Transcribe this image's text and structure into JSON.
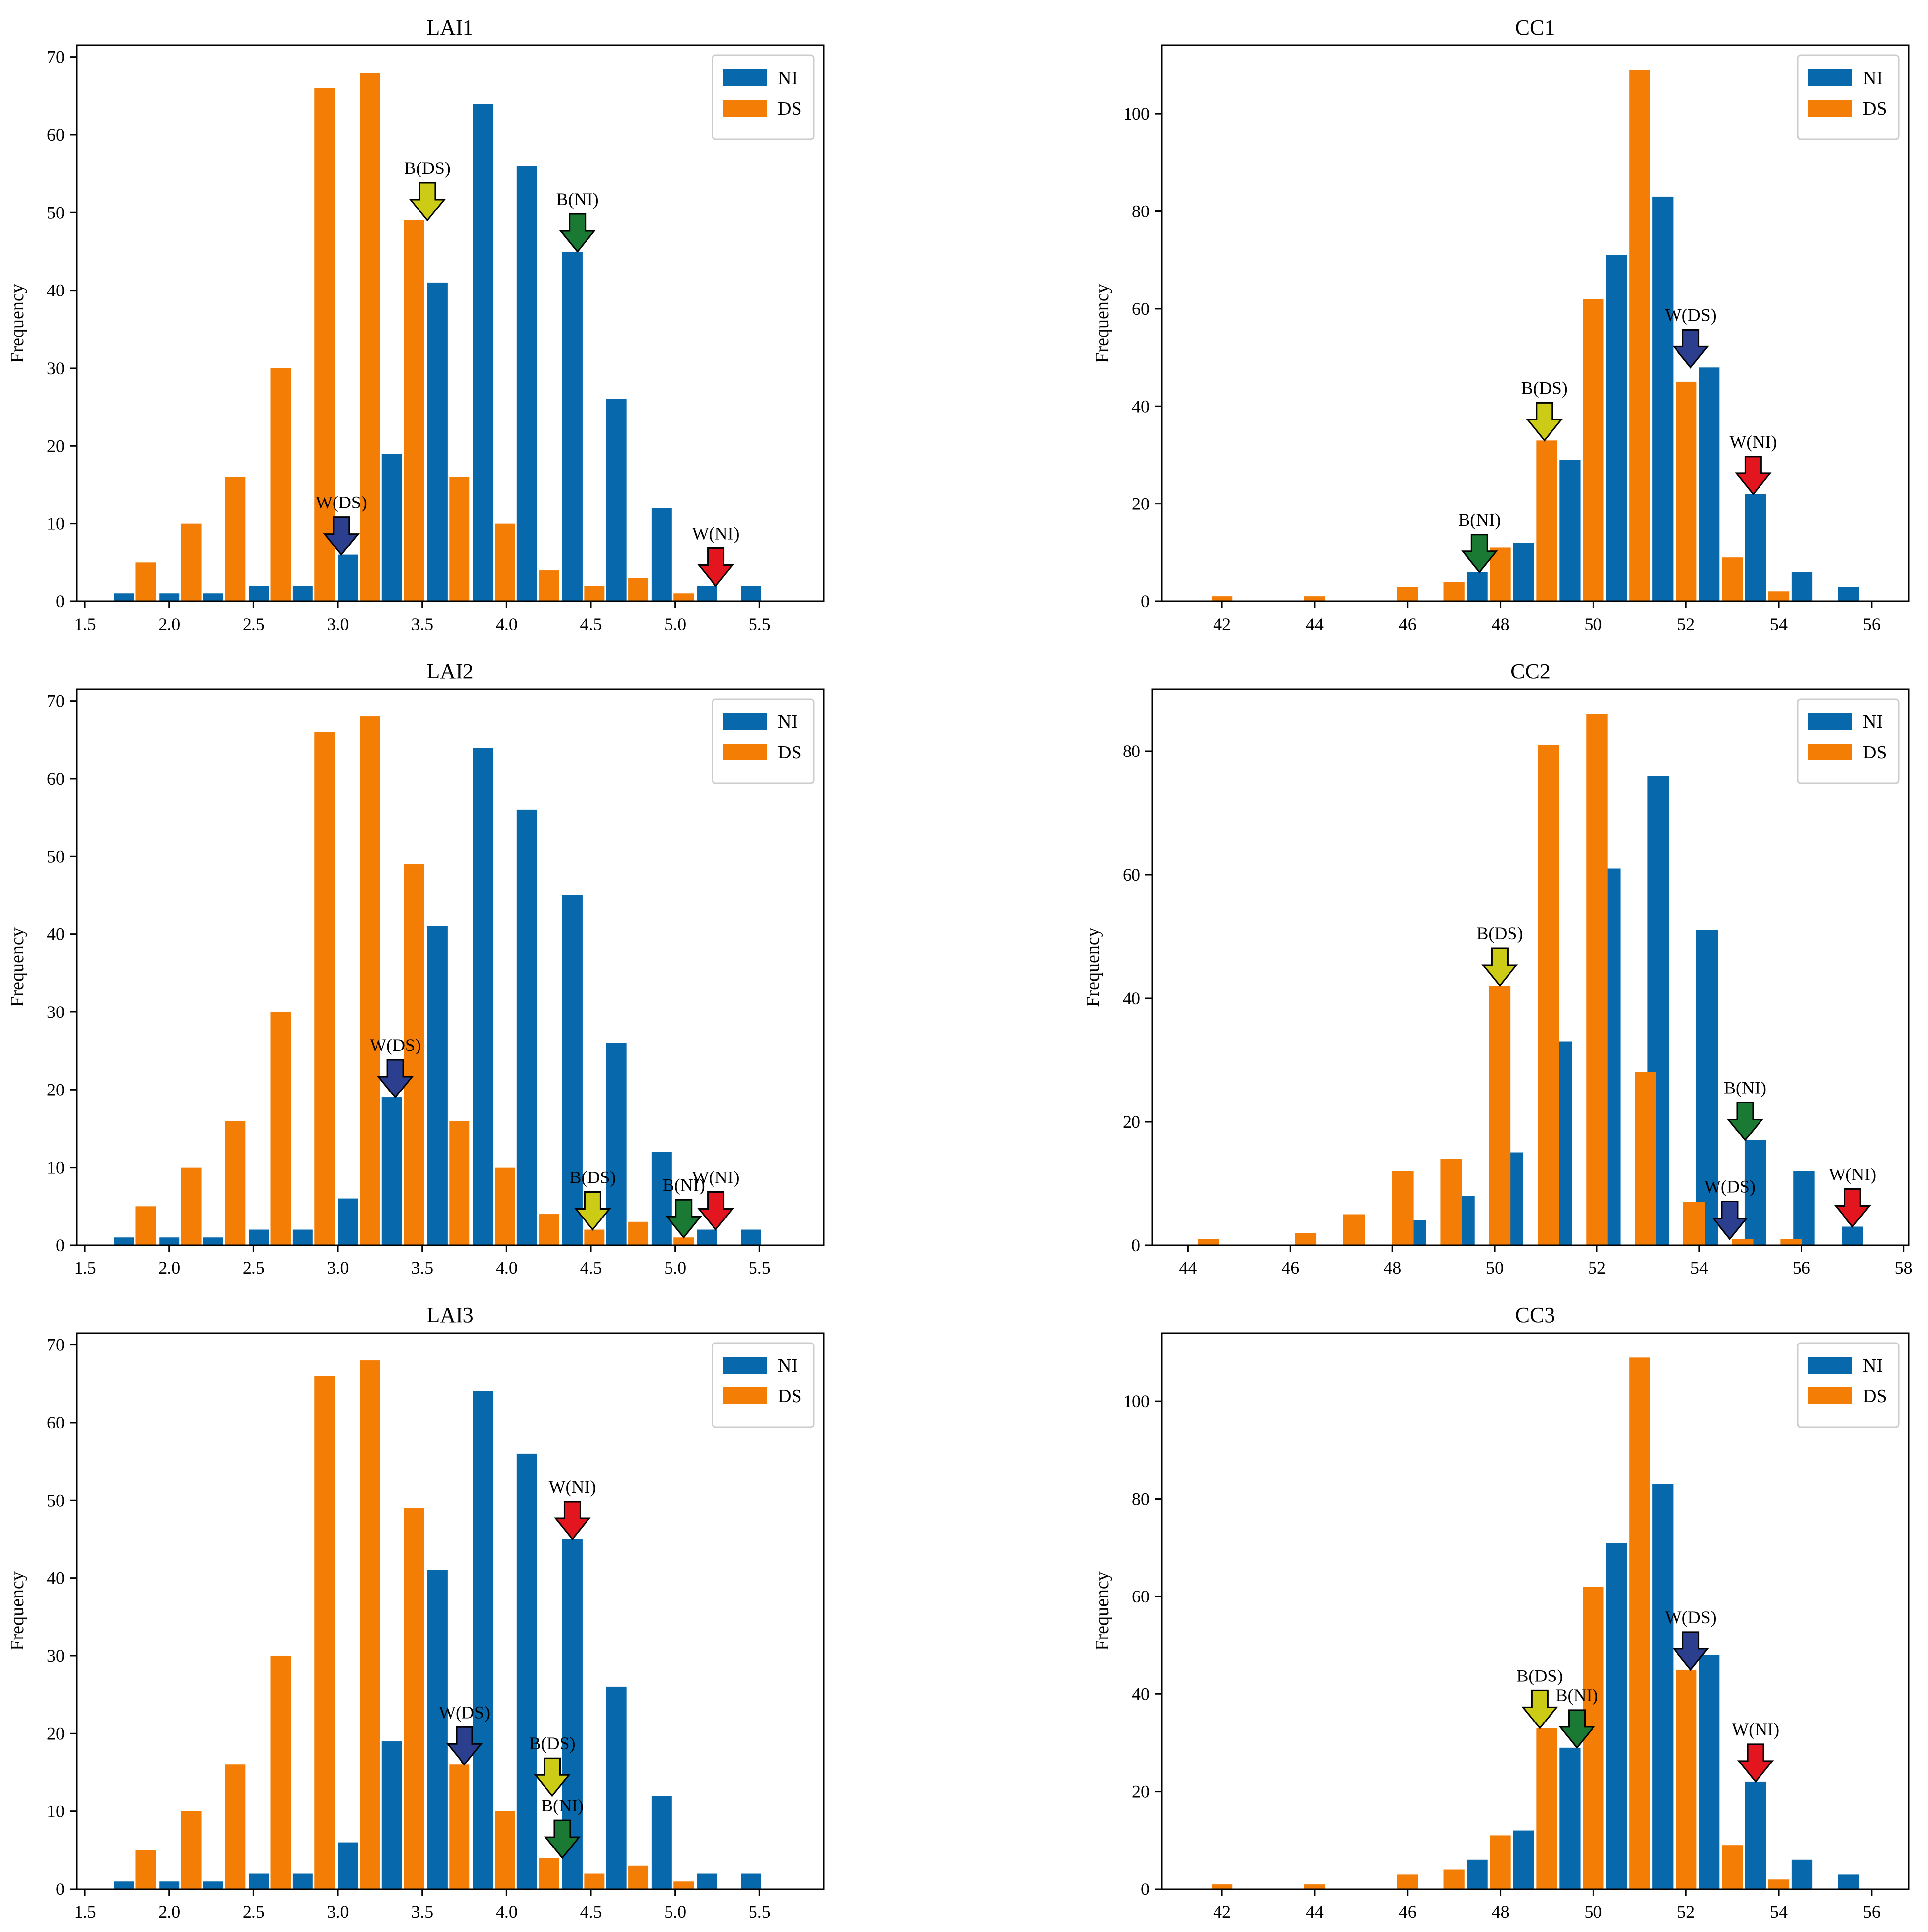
{
  "colors": {
    "NI": "#0868ac",
    "DS": "#f47d06",
    "yellow": "#cccc16",
    "green": "#1a7a33",
    "blue": "#2b3f8e",
    "red": "#e3151e"
  },
  "chart_data": [
    {
      "id": "LAI1",
      "type": "bar",
      "title": "LAI1",
      "ylabel": "Frequency",
      "xlabel": "",
      "xlim": [
        1.45,
        5.88
      ],
      "ylim": [
        0,
        71.5
      ],
      "xticks": [
        "1.5",
        "2.0",
        "2.5",
        "3.0",
        "3.5",
        "4.0",
        "4.5",
        "5.0",
        "5.5"
      ],
      "yticks": [
        "0",
        "10",
        "20",
        "30",
        "40",
        "50",
        "60",
        "70"
      ],
      "bar_width": 0.12,
      "series": [
        {
          "name": "NI",
          "x": [
            1.73,
            2.0,
            2.26,
            2.53,
            2.79,
            3.06,
            3.32,
            3.59,
            3.86,
            4.12,
            4.39,
            4.65,
            4.92,
            5.19,
            5.45
          ],
          "values": [
            1,
            1,
            1,
            2,
            2,
            6,
            19,
            41,
            64,
            56,
            45,
            26,
            12,
            2,
            2
          ]
        },
        {
          "name": "DS",
          "x": [
            1.86,
            2.13,
            2.39,
            2.66,
            2.92,
            3.19,
            3.45,
            3.72,
            3.99,
            4.25,
            4.52,
            4.78,
            5.05
          ],
          "values": [
            5,
            10,
            16,
            30,
            66,
            68,
            49,
            16,
            10,
            4,
            2,
            3,
            1
          ]
        }
      ],
      "legend": {
        "position": "top-right",
        "entries": [
          "NI",
          "DS"
        ]
      },
      "annotations": [
        {
          "label": "B(DS)",
          "x": 3.53,
          "y": 49,
          "color": "yellow"
        },
        {
          "label": "B(NI)",
          "x": 4.42,
          "y": 45,
          "color": "green"
        },
        {
          "label": "W(DS)",
          "x": 3.02,
          "y": 6,
          "color": "blue"
        },
        {
          "label": "W(NI)",
          "x": 5.24,
          "y": 2,
          "color": "red"
        }
      ]
    },
    {
      "id": "CC1",
      "type": "bar",
      "title": "CC1",
      "ylabel": "Frequency",
      "xlabel": "",
      "xlim": [
        40.7,
        56.8
      ],
      "ylim": [
        0,
        114
      ],
      "xticks": [
        "42",
        "44",
        "46",
        "48",
        "50",
        "52",
        "54",
        "56"
      ],
      "yticks": [
        "0",
        "20",
        "40",
        "60",
        "80",
        "100"
      ],
      "bar_width": 0.45,
      "series": [
        {
          "name": "NI",
          "x": [
            47.5,
            48.5,
            49.5,
            50.5,
            51.5,
            52.5,
            53.5,
            54.5,
            55.5
          ],
          "values": [
            6,
            12,
            29,
            71,
            83,
            48,
            22,
            6,
            3
          ]
        },
        {
          "name": "DS",
          "x": [
            42.0,
            44.0,
            46.0,
            47.0,
            48.0,
            49.0,
            50.0,
            51.0,
            52.0,
            53.0,
            54.0
          ],
          "values": [
            1,
            1,
            3,
            4,
            11,
            33,
            62,
            109,
            45,
            9,
            2
          ]
        }
      ],
      "legend": {
        "position": "top-right",
        "entries": [
          "NI",
          "DS"
        ]
      },
      "annotations": [
        {
          "label": "W(DS)",
          "x": 52.1,
          "y": 48,
          "color": "blue"
        },
        {
          "label": "B(DS)",
          "x": 48.95,
          "y": 33,
          "color": "yellow"
        },
        {
          "label": "W(NI)",
          "x": 53.45,
          "y": 22,
          "color": "red"
        },
        {
          "label": "B(NI)",
          "x": 47.55,
          "y": 6,
          "color": "green"
        }
      ]
    },
    {
      "id": "LAI2",
      "type": "bar",
      "title": "LAI2",
      "ylabel": "Frequency",
      "xlabel": "",
      "xlim": [
        1.45,
        5.88
      ],
      "ylim": [
        0,
        71.5
      ],
      "xticks": [
        "1.5",
        "2.0",
        "2.5",
        "3.0",
        "3.5",
        "4.0",
        "4.5",
        "5.0",
        "5.5"
      ],
      "yticks": [
        "0",
        "10",
        "20",
        "30",
        "40",
        "50",
        "60",
        "70"
      ],
      "bar_width": 0.12,
      "series": [
        {
          "name": "NI",
          "x": [
            1.73,
            2.0,
            2.26,
            2.53,
            2.79,
            3.06,
            3.32,
            3.59,
            3.86,
            4.12,
            4.39,
            4.65,
            4.92,
            5.19,
            5.45
          ],
          "values": [
            1,
            1,
            1,
            2,
            2,
            6,
            19,
            41,
            64,
            56,
            45,
            26,
            12,
            2,
            2
          ]
        },
        {
          "name": "DS",
          "x": [
            1.86,
            2.13,
            2.39,
            2.66,
            2.92,
            3.19,
            3.45,
            3.72,
            3.99,
            4.25,
            4.52,
            4.78,
            5.05
          ],
          "values": [
            5,
            10,
            16,
            30,
            66,
            68,
            49,
            16,
            10,
            4,
            2,
            3,
            1
          ]
        }
      ],
      "legend": {
        "position": "top-right",
        "entries": [
          "NI",
          "DS"
        ]
      },
      "annotations": [
        {
          "label": "W(DS)",
          "x": 3.34,
          "y": 19,
          "color": "blue"
        },
        {
          "label": "B(DS)",
          "x": 4.51,
          "y": 2,
          "color": "yellow"
        },
        {
          "label": "B(NI)",
          "x": 5.05,
          "y": 1,
          "color": "green"
        },
        {
          "label": "W(NI)",
          "x": 5.24,
          "y": 2,
          "color": "red"
        }
      ]
    },
    {
      "id": "CC2",
      "type": "bar",
      "title": "CC2",
      "ylabel": "Frequency",
      "xlabel": "",
      "xlim": [
        43.3,
        58.1
      ],
      "ylim": [
        0,
        90
      ],
      "xticks": [
        "44",
        "46",
        "48",
        "50",
        "52",
        "54",
        "56",
        "58"
      ],
      "yticks": [
        "0",
        "20",
        "40",
        "60",
        "80"
      ],
      "bar_width": 0.42,
      "series": [
        {
          "name": "NI",
          "x": [
            48.45,
            49.4,
            50.35,
            51.3,
            52.25,
            53.2,
            54.15,
            55.1,
            56.05,
            57.0
          ],
          "values": [
            4,
            8,
            15,
            33,
            61,
            76,
            51,
            17,
            12,
            3
          ]
        },
        {
          "name": "DS",
          "x": [
            44.4,
            46.3,
            47.25,
            48.2,
            49.15,
            50.1,
            51.05,
            52.0,
            52.95,
            53.9,
            54.85,
            55.8
          ],
          "values": [
            1,
            2,
            5,
            12,
            14,
            42,
            81,
            86,
            28,
            7,
            1,
            1
          ]
        }
      ],
      "legend": {
        "position": "top-right",
        "entries": [
          "NI",
          "DS"
        ]
      },
      "annotations": [
        {
          "label": "B(DS)",
          "x": 50.1,
          "y": 42,
          "color": "yellow"
        },
        {
          "label": "B(NI)",
          "x": 54.9,
          "y": 17,
          "color": "green"
        },
        {
          "label": "W(DS)",
          "x": 54.6,
          "y": 1,
          "color": "blue"
        },
        {
          "label": "W(NI)",
          "x": 57.0,
          "y": 3,
          "color": "red"
        }
      ]
    },
    {
      "id": "LAI3",
      "type": "bar",
      "title": "LAI3",
      "ylabel": "Frequency",
      "xlabel": "",
      "xlim": [
        1.45,
        5.88
      ],
      "ylim": [
        0,
        71.5
      ],
      "xticks": [
        "1.5",
        "2.0",
        "2.5",
        "3.0",
        "3.5",
        "4.0",
        "4.5",
        "5.0",
        "5.5"
      ],
      "yticks": [
        "0",
        "10",
        "20",
        "30",
        "40",
        "50",
        "60",
        "70"
      ],
      "bar_width": 0.12,
      "series": [
        {
          "name": "NI",
          "x": [
            1.73,
            2.0,
            2.26,
            2.53,
            2.79,
            3.06,
            3.32,
            3.59,
            3.86,
            4.12,
            4.39,
            4.65,
            4.92,
            5.19,
            5.45
          ],
          "values": [
            1,
            1,
            1,
            2,
            2,
            6,
            19,
            41,
            64,
            56,
            45,
            26,
            12,
            2,
            2
          ]
        },
        {
          "name": "DS",
          "x": [
            1.86,
            2.13,
            2.39,
            2.66,
            2.92,
            3.19,
            3.45,
            3.72,
            3.99,
            4.25,
            4.52,
            4.78,
            5.05
          ],
          "values": [
            5,
            10,
            16,
            30,
            66,
            68,
            49,
            16,
            10,
            4,
            2,
            3,
            1
          ]
        }
      ],
      "legend": {
        "position": "top-right",
        "entries": [
          "NI",
          "DS"
        ]
      },
      "annotations": [
        {
          "label": "W(NI)",
          "x": 4.39,
          "y": 45,
          "color": "red"
        },
        {
          "label": "W(DS)",
          "x": 3.75,
          "y": 16,
          "color": "blue"
        },
        {
          "label": "B(DS)",
          "x": 4.27,
          "y": 12,
          "color": "yellow"
        },
        {
          "label": "B(NI)",
          "x": 4.33,
          "y": 4,
          "color": "green"
        }
      ]
    },
    {
      "id": "CC3",
      "type": "bar",
      "title": "CC3",
      "ylabel": "Frequency",
      "xlabel": "",
      "xlim": [
        40.7,
        56.8
      ],
      "ylim": [
        0,
        114
      ],
      "xticks": [
        "42",
        "44",
        "46",
        "48",
        "50",
        "52",
        "54",
        "56"
      ],
      "yticks": [
        "0",
        "20",
        "40",
        "60",
        "80",
        "100"
      ],
      "bar_width": 0.45,
      "series": [
        {
          "name": "NI",
          "x": [
            47.5,
            48.5,
            49.5,
            50.5,
            51.5,
            52.5,
            53.5,
            54.5,
            55.5
          ],
          "values": [
            6,
            12,
            29,
            71,
            83,
            48,
            22,
            6,
            3
          ]
        },
        {
          "name": "DS",
          "x": [
            42.0,
            44.0,
            46.0,
            47.0,
            48.0,
            49.0,
            50.0,
            51.0,
            52.0,
            53.0,
            54.0
          ],
          "values": [
            1,
            1,
            3,
            4,
            11,
            33,
            62,
            109,
            45,
            9,
            2
          ]
        }
      ],
      "legend": {
        "position": "top-right",
        "entries": [
          "NI",
          "DS"
        ]
      },
      "annotations": [
        {
          "label": "W(DS)",
          "x": 52.1,
          "y": 45,
          "color": "blue"
        },
        {
          "label": "B(DS)",
          "x": 48.85,
          "y": 33,
          "color": "yellow"
        },
        {
          "label": "B(NI)",
          "x": 49.65,
          "y": 29,
          "color": "green"
        },
        {
          "label": "W(NI)",
          "x": 53.5,
          "y": 22,
          "color": "red"
        }
      ]
    }
  ]
}
